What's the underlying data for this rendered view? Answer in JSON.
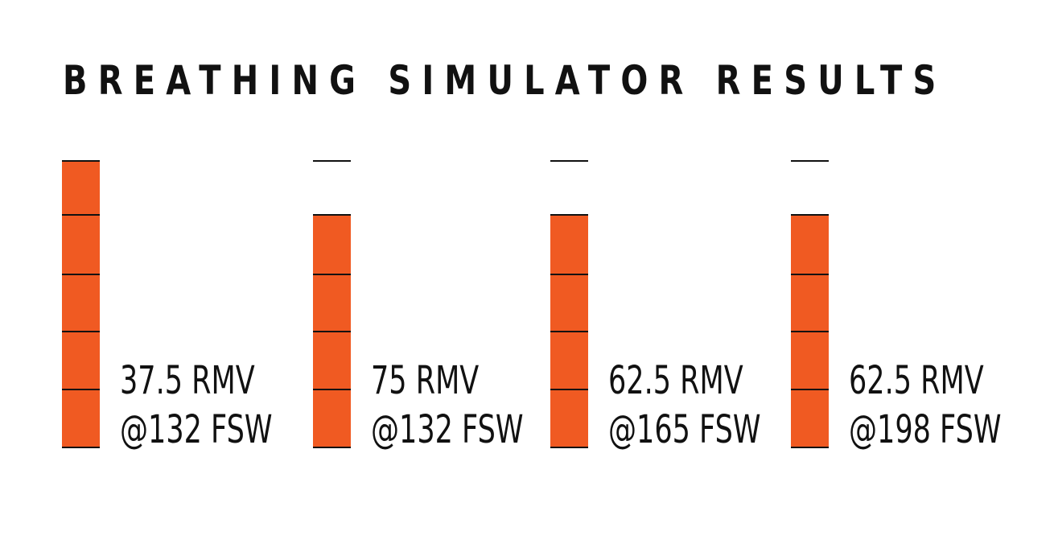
{
  "title": "BREATHING SIMULATOR RESULTS",
  "chart_data": {
    "type": "bar",
    "title": "BREATHING SIMULATOR RESULTS",
    "levels": 5,
    "series": [
      {
        "rmv_label": "37.5 RMV",
        "depth_label": "@132 FSW",
        "rmv": 37.5,
        "depth_fsw": 132,
        "filled_segments": 5
      },
      {
        "rmv_label": "75 RMV",
        "depth_label": "@132 FSW",
        "rmv": 75,
        "depth_fsw": 132,
        "filled_segments": 4
      },
      {
        "rmv_label": "62.5 RMV",
        "depth_label": "@165 FSW",
        "rmv": 62.5,
        "depth_fsw": 165,
        "filled_segments": 4
      },
      {
        "rmv_label": "62.5 RMV",
        "depth_label": "@198 FSW",
        "rmv": 62.5,
        "depth_fsw": 198,
        "filled_segments": 4
      }
    ],
    "colors": {
      "fill": "#f05a22",
      "line": "#111111"
    }
  }
}
